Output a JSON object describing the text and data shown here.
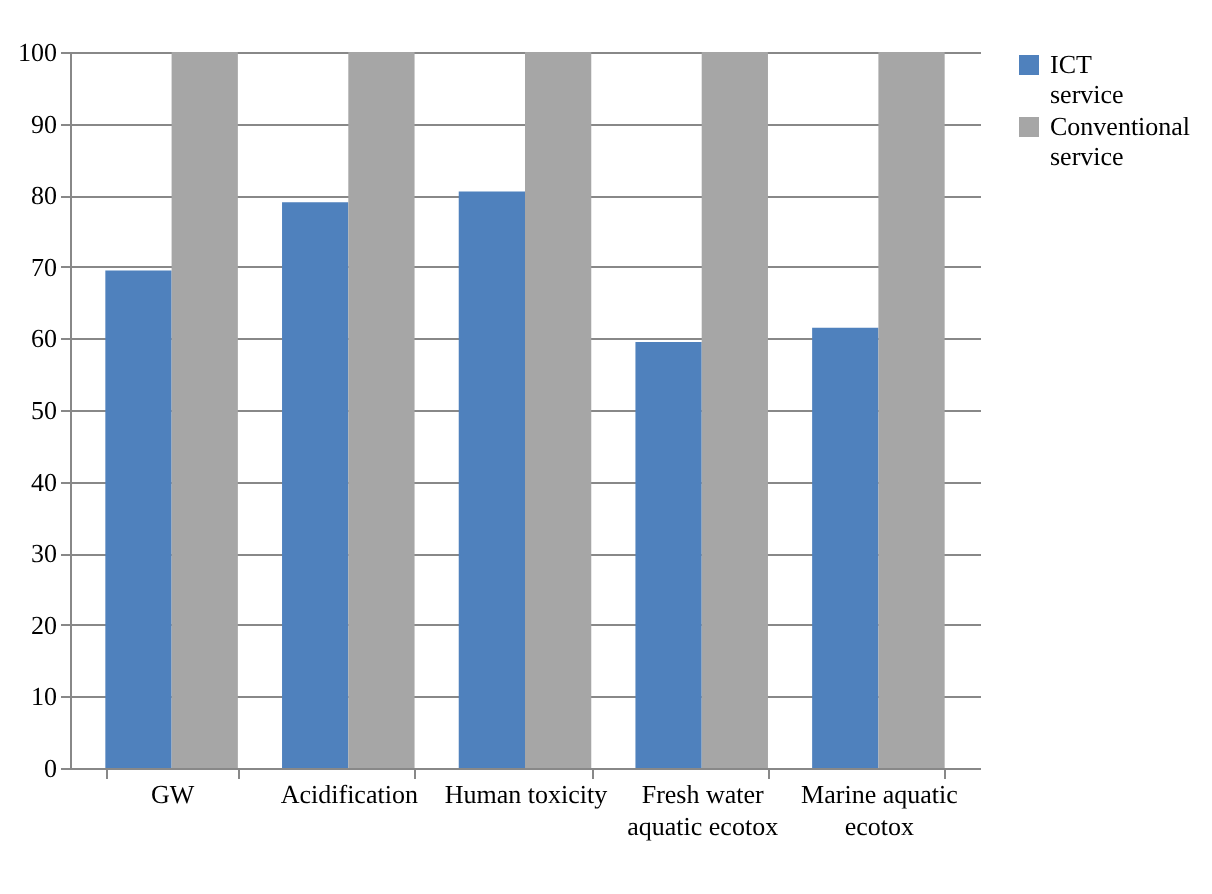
{
  "chart_data": {
    "type": "bar",
    "categories": [
      "GW",
      "Acidification",
      "Human toxicity",
      "Fresh water aquatic ecotox",
      "Marine aquatic ecotox"
    ],
    "series": [
      {
        "name": "ICT service",
        "color": "#4f81bd",
        "values": [
          69.5,
          79,
          80.5,
          59.5,
          61.5
        ]
      },
      {
        "name": "Conventional service",
        "color": "#a6a6a6",
        "values": [
          100,
          100,
          100,
          100,
          100
        ]
      }
    ],
    "ylim": [
      0,
      100
    ],
    "yticks": [
      0,
      10,
      20,
      30,
      40,
      50,
      60,
      70,
      80,
      90,
      100
    ],
    "grid": "y",
    "legend": "right"
  }
}
